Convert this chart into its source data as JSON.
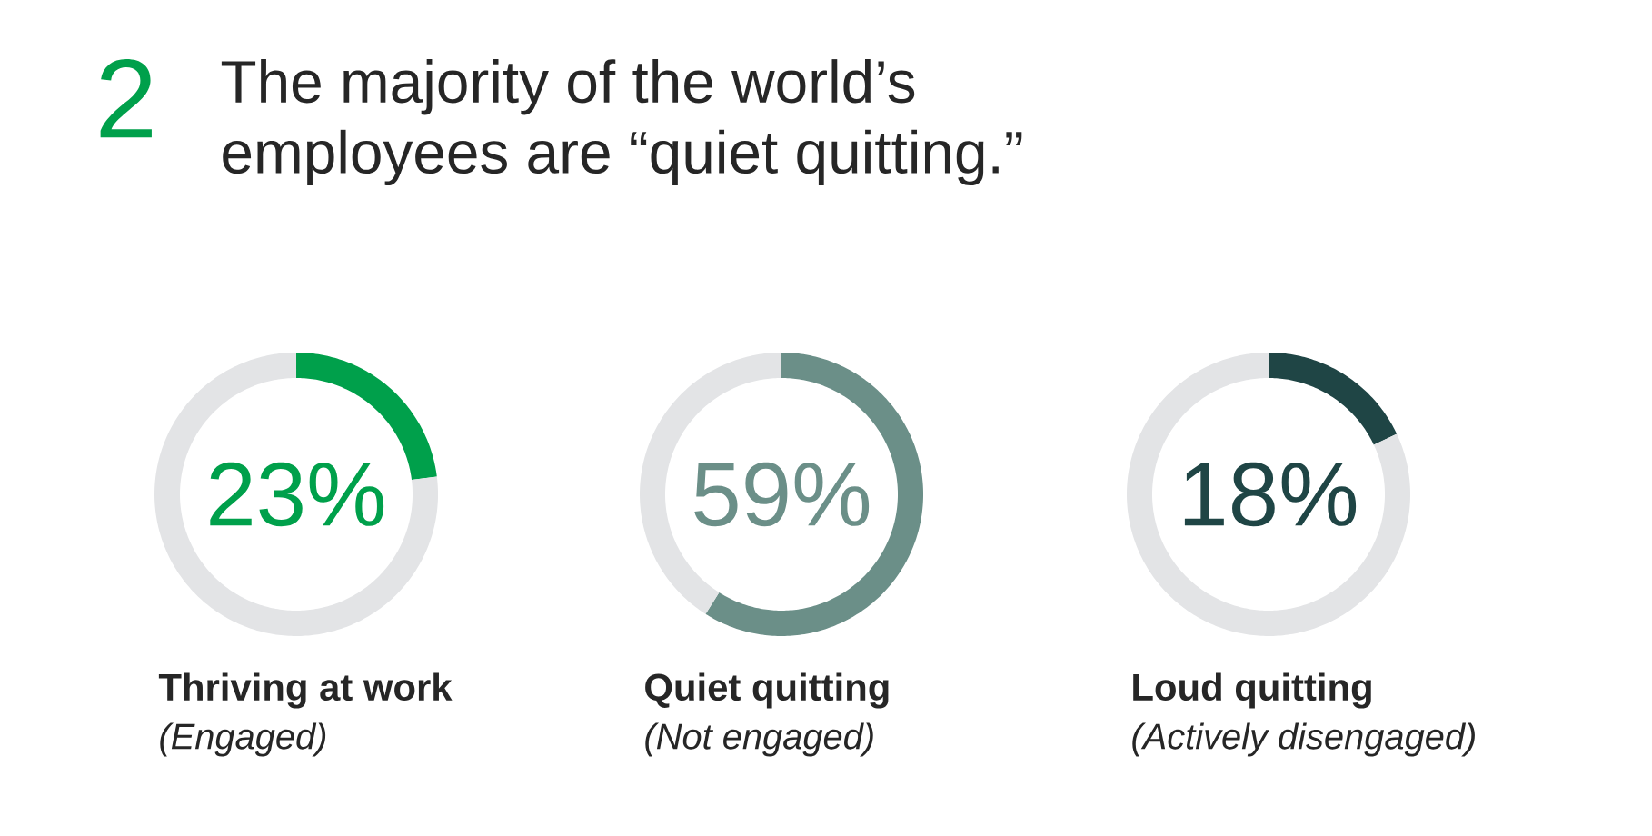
{
  "chart_data": [
    {
      "type": "other",
      "title": "The majority of the world’s employees are “quiet quitting.”",
      "annotations": [
        "2"
      ],
      "color": "#00a04b"
    },
    {
      "type": "donut",
      "title": "Thriving at work",
      "subtitle": "(Engaged)",
      "categories": [
        null,
        null
      ],
      "values": [
        23,
        77
      ],
      "colors": [
        "#00a04b",
        "#e3e4e6"
      ],
      "value_labels": [
        "23%",
        null
      ]
    },
    {
      "type": "donut",
      "title": "Quiet quitting",
      "subtitle": "(Not engaged)",
      "categories": [
        null,
        null
      ],
      "values": [
        59,
        41
      ],
      "colors": [
        "#6b8f88",
        "#e3e4e6"
      ],
      "value_labels": [
        "59%",
        null
      ]
    },
    {
      "type": "donut",
      "title": "Loud quitting",
      "subtitle": "(Actively disengaged)",
      "categories": [
        null,
        null
      ],
      "values": [
        18,
        82
      ],
      "colors": [
        "#1f4545",
        "#e3e4e6"
      ],
      "value_labels": [
        "18%",
        null
      ]
    }
  ]
}
